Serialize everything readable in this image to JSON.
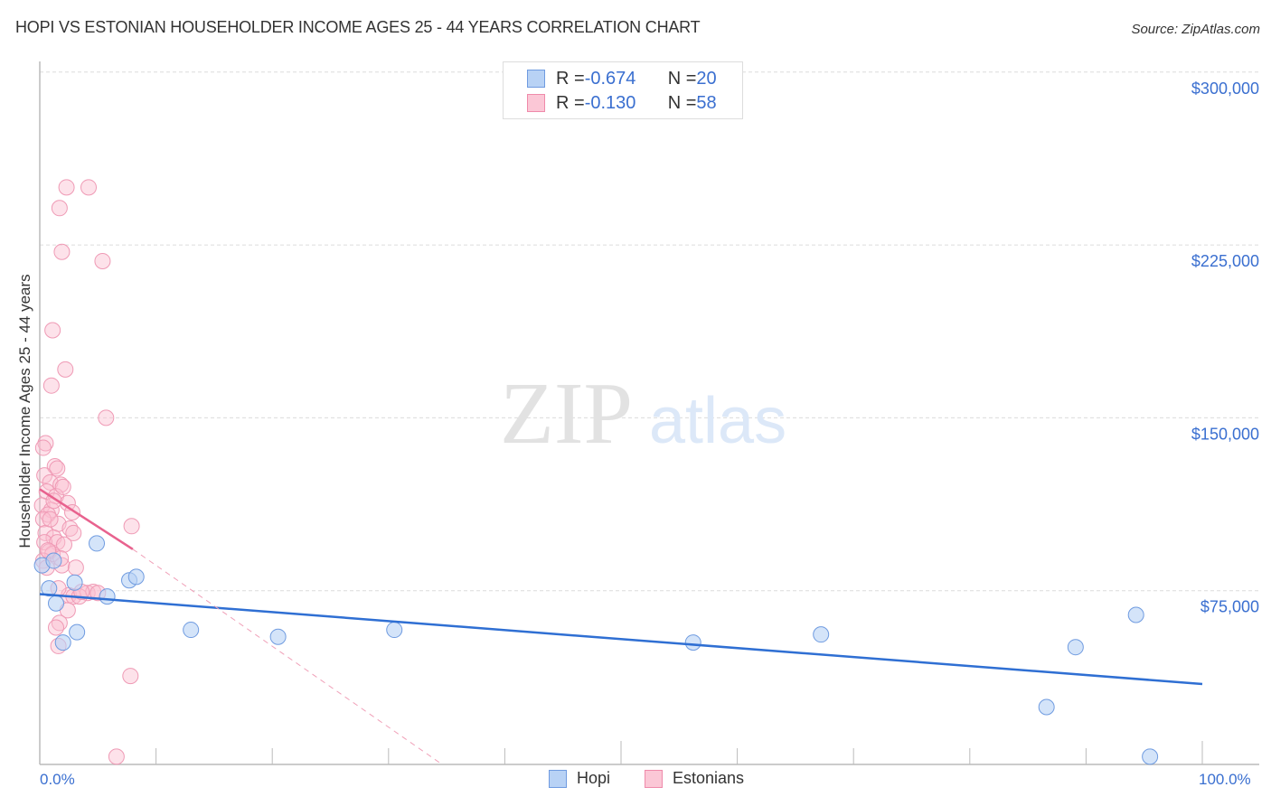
{
  "title": "HOPI VS ESTONIAN HOUSEHOLDER INCOME AGES 25 - 44 YEARS CORRELATION CHART",
  "source": "Source: ZipAtlas.com",
  "watermark": {
    "zip": "ZIP",
    "atlas": "atlas"
  },
  "legend": {
    "rows": [
      {
        "r_label": "R = ",
        "r_value": "-0.674",
        "n_label": "N = ",
        "n_value": "20",
        "color": "#b8d2f5",
        "border": "#6f9be0"
      },
      {
        "r_label": "R = ",
        "r_value": "-0.130",
        "n_label": "N = ",
        "n_value": "58",
        "color": "#fbc7d6",
        "border": "#ef8aaa"
      }
    ]
  },
  "bottom_legend": [
    {
      "label": "Hopi",
      "color": "#b8d2f5",
      "border": "#6f9be0"
    },
    {
      "label": "Estonians",
      "color": "#fbc7d6",
      "border": "#ef8aaa"
    }
  ],
  "x_axis": {
    "min_label": "0.0%",
    "max_label": "100.0%"
  },
  "y_axis": {
    "label": "Householder Income Ages 25 - 44 years",
    "ticks": [
      "$300,000",
      "$225,000",
      "$150,000",
      "$75,000"
    ]
  },
  "colors": {
    "hopi": "#2f6fd3",
    "estonians": "#e8628e",
    "tick_text": "#3a6fd0"
  },
  "chart_data": {
    "type": "scatter",
    "title": "HOPI VS ESTONIAN HOUSEHOLDER INCOME AGES 25 - 44 YEARS CORRELATION CHART",
    "xlabel": "",
    "ylabel": "Householder Income Ages 25 - 44 years",
    "xlim": [
      0,
      100
    ],
    "ylim": [
      0,
      310000
    ],
    "x_tick_labels": [
      "0.0%",
      "100.0%"
    ],
    "y_tick_values": [
      75000,
      150000,
      225000,
      300000
    ],
    "y_tick_labels": [
      "$75,000",
      "$150,000",
      "$225,000",
      "$300,000"
    ],
    "grid": true,
    "legend_position": "top-center",
    "series": [
      {
        "name": "Hopi",
        "r": -0.674,
        "n": 20,
        "points": [
          [
            0.2,
            86000
          ],
          [
            0.8,
            76000
          ],
          [
            1.4,
            69500
          ],
          [
            3.0,
            78500
          ],
          [
            2.0,
            52500
          ],
          [
            3.2,
            57000
          ],
          [
            4.9,
            95500
          ],
          [
            5.8,
            72500
          ],
          [
            7.7,
            79500
          ],
          [
            8.3,
            81000
          ],
          [
            13.0,
            58000
          ],
          [
            20.5,
            55000
          ],
          [
            30.5,
            58000
          ],
          [
            56.2,
            52500
          ],
          [
            67.2,
            56000
          ],
          [
            86.6,
            24500
          ],
          [
            89.1,
            50500
          ],
          [
            94.3,
            64500
          ],
          [
            95.5,
            3000
          ],
          [
            1.2,
            88000
          ]
        ],
        "trendline": {
          "x": [
            0,
            100
          ],
          "y": [
            73500,
            34500
          ]
        }
      },
      {
        "name": "Estonians",
        "r": -0.13,
        "n": 58,
        "points": [
          [
            2.3,
            250000
          ],
          [
            4.2,
            250000
          ],
          [
            1.7,
            241000
          ],
          [
            1.9,
            222000
          ],
          [
            5.4,
            218000
          ],
          [
            1.1,
            188000
          ],
          [
            2.2,
            171000
          ],
          [
            1.0,
            164000
          ],
          [
            5.7,
            150000
          ],
          [
            0.5,
            139000
          ],
          [
            0.3,
            137000
          ],
          [
            1.3,
            129000
          ],
          [
            1.5,
            128000
          ],
          [
            0.4,
            125000
          ],
          [
            0.9,
            122000
          ],
          [
            1.8,
            121000
          ],
          [
            0.6,
            118000
          ],
          [
            1.4,
            116000
          ],
          [
            2.4,
            113000
          ],
          [
            0.2,
            112000
          ],
          [
            1.0,
            110000
          ],
          [
            0.7,
            108000
          ],
          [
            2.8,
            109000
          ],
          [
            0.3,
            106000
          ],
          [
            1.6,
            104000
          ],
          [
            2.6,
            102000
          ],
          [
            7.9,
            103000
          ],
          [
            0.5,
            100000
          ],
          [
            1.2,
            98000
          ],
          [
            2.9,
            100000
          ],
          [
            0.4,
            96000
          ],
          [
            1.5,
            96000
          ],
          [
            2.1,
            95000
          ],
          [
            0.8,
            92000
          ],
          [
            1.1,
            91000
          ],
          [
            0.3,
            88000
          ],
          [
            1.9,
            86000
          ],
          [
            3.1,
            85000
          ],
          [
            0.6,
            85000
          ],
          [
            4.1,
            74000
          ],
          [
            4.6,
            74500
          ],
          [
            5.0,
            74000
          ],
          [
            2.5,
            73000
          ],
          [
            2.9,
            72500
          ],
          [
            3.4,
            72500
          ],
          [
            1.6,
            76000
          ],
          [
            2.4,
            66500
          ],
          [
            1.7,
            61000
          ],
          [
            1.4,
            59000
          ],
          [
            1.6,
            51000
          ],
          [
            7.8,
            38000
          ],
          [
            6.6,
            3000
          ],
          [
            0.9,
            106000
          ],
          [
            1.2,
            114000
          ],
          [
            2.0,
            120000
          ],
          [
            3.6,
            74500
          ],
          [
            1.8,
            89000
          ],
          [
            0.7,
            92500
          ]
        ],
        "trendline": {
          "x": [
            0,
            8
          ],
          "y": [
            119000,
            93000
          ]
        },
        "trendline_extended": {
          "x": [
            8,
            34.5
          ],
          "y": [
            93000,
            0
          ]
        }
      }
    ]
  }
}
